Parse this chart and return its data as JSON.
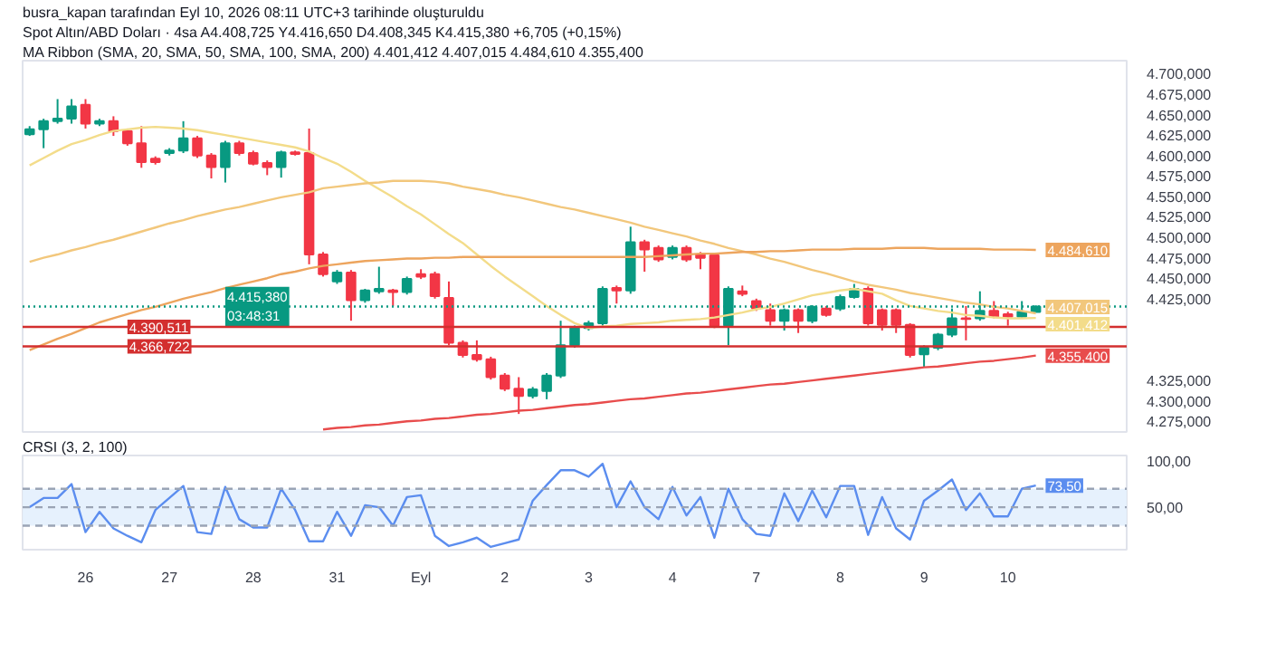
{
  "chart_data": [
    {
      "type": "candlestick",
      "title": "busra_kapan tarafından Eyl 10, 2026 08:11 UTC+3 tarihinde oluşturuldu",
      "subtitle": "Spot Altın/ABD Doları · 4sa   A4.408,725  Y4.416,650  D4.408,345  K4.415,380  +6,705 (+0,15%)",
      "categories": [
        null,
        null,
        null,
        null,
        null,
        null,
        null,
        null,
        null,
        null,
        null,
        null,
        null,
        null,
        null,
        null,
        null,
        null,
        null,
        null,
        null,
        null,
        null,
        null,
        null,
        null,
        null,
        null,
        null,
        null,
        null,
        null,
        null,
        null,
        null,
        null,
        null,
        null,
        null,
        null,
        null,
        null,
        null,
        null,
        null,
        null,
        null,
        null,
        null,
        null,
        null,
        null,
        null,
        null,
        null,
        null,
        null,
        null,
        null,
        null,
        null,
        null,
        null,
        null,
        null,
        null,
        null,
        null,
        null,
        null,
        null,
        null,
        null,
        null,
        null,
        null,
        null,
        null,
        null
      ],
      "ohlc": [
        [
          4626,
          4636,
          4624,
          4632
        ],
        [
          4632,
          4645,
          4609,
          4642
        ],
        [
          4642,
          4669,
          4639,
          4645
        ],
        [
          4645,
          4669,
          4639,
          4660
        ],
        [
          4662,
          4669,
          4633,
          4639
        ],
        [
          4639,
          4645,
          4636,
          4642
        ],
        [
          4642,
          4648,
          4624,
          4630
        ],
        [
          4630,
          4633,
          4612,
          4615
        ],
        [
          4615,
          4636,
          4585,
          4592
        ],
        [
          4596,
          4599,
          4589,
          4592
        ],
        [
          4603,
          4609,
          4600,
          4606
        ],
        [
          4606,
          4642,
          4603,
          4621
        ],
        [
          4621,
          4624,
          4597,
          4600
        ],
        [
          4600,
          4603,
          4572,
          4586
        ],
        [
          4586,
          4618,
          4567,
          4615
        ],
        [
          4615,
          4618,
          4600,
          4603
        ],
        [
          4603,
          4606,
          4588,
          4590
        ],
        [
          4591,
          4594,
          4576,
          4586
        ],
        [
          4586,
          4606,
          4573,
          4604
        ],
        [
          4604,
          4606,
          4600,
          4602
        ],
        [
          4603,
          4633,
          4467,
          4479
        ],
        [
          4479,
          4482,
          4452,
          4455
        ],
        [
          4446,
          4460,
          4443,
          4457
        ],
        [
          4457,
          4460,
          4398,
          4423
        ],
        [
          4423,
          4437,
          4420,
          4435
        ],
        [
          4434,
          4464,
          4431,
          4437
        ],
        [
          4435,
          4437,
          4416,
          4433
        ],
        [
          4433,
          4452,
          4430,
          4449
        ],
        [
          4455,
          4461,
          4449,
          4452
        ],
        [
          4455,
          4458,
          4425,
          4428
        ],
        [
          4426,
          4446,
          4368,
          4371
        ],
        [
          4371,
          4374,
          4353,
          4356
        ],
        [
          4356,
          4374,
          4348,
          4351
        ],
        [
          4351,
          4354,
          4326,
          4329
        ],
        [
          4331,
          4334,
          4312,
          4315
        ],
        [
          4315,
          4329,
          4284,
          4306
        ],
        [
          4306,
          4317,
          4303,
          4314
        ],
        [
          4312,
          4334,
          4302,
          4331
        ],
        [
          4331,
          4398,
          4328,
          4368
        ],
        [
          4368,
          4392,
          4365,
          4389
        ],
        [
          4389,
          4398,
          4386,
          4395
        ],
        [
          4395,
          4440,
          4390,
          4437
        ],
        [
          4438,
          4441,
          4419,
          4435
        ],
        [
          4435,
          4513,
          4431,
          4494
        ],
        [
          4494,
          4497,
          4458,
          4485
        ],
        [
          4487,
          4490,
          4470,
          4473
        ],
        [
          4476,
          4490,
          4473,
          4487
        ],
        [
          4487,
          4490,
          4470,
          4473
        ],
        [
          4479,
          4482,
          4461,
          4475
        ],
        [
          4478,
          4481,
          4389,
          4392
        ],
        [
          4392,
          4440,
          4368,
          4437
        ],
        [
          4434,
          4441,
          4428,
          4431
        ],
        [
          4422,
          4425,
          4410,
          4413
        ],
        [
          4411,
          4419,
          4392,
          4398
        ],
        [
          4398,
          4413,
          4386,
          4411
        ],
        [
          4411,
          4413,
          4383,
          4398
        ],
        [
          4398,
          4417,
          4395,
          4415
        ],
        [
          4413,
          4416,
          4403,
          4405
        ],
        [
          4413,
          4430,
          4410,
          4427
        ],
        [
          4427,
          4443,
          4425,
          4437
        ],
        [
          4437,
          4440,
          4392,
          4395
        ],
        [
          4411,
          4413,
          4386,
          4393
        ],
        [
          4411,
          4413,
          4383,
          4393
        ],
        [
          4393,
          4395,
          4353,
          4356
        ],
        [
          4357,
          4368,
          4341,
          4365
        ],
        [
          4365,
          4383,
          4362,
          4381
        ],
        [
          4381,
          4413,
          4378,
          4401
        ],
        [
          4401,
          4416,
          4374,
          4400
        ],
        [
          4401,
          4434,
          4398,
          4410
        ],
        [
          4410,
          4422,
          4401,
          4403
        ],
        [
          4406,
          4409,
          4392,
          4403
        ],
        [
          4403,
          4422,
          4401,
          4409
        ],
        [
          4408.725,
          4416.65,
          4408.345,
          4415.38
        ],
        null,
        null,
        null,
        null,
        null,
        null
      ],
      "series": [
        {
          "type": "line",
          "color": "#f3dc8a",
          "values": [
            4588,
            4597,
            4606,
            4614,
            4619,
            4625,
            4630,
            4632,
            4634,
            4635,
            4634,
            4633,
            4631,
            4628,
            4625,
            4622,
            4619,
            4616,
            4613,
            4610,
            4605,
            4597,
            4590,
            4580,
            4569,
            4559,
            4549,
            4538,
            4528,
            4516,
            4504,
            4493,
            4479,
            4465,
            4452,
            4440,
            4428,
            4416,
            4405,
            4395,
            4389,
            4391,
            4392,
            4394,
            4395,
            4396,
            4398,
            4399,
            4400,
            4402,
            4405,
            4408,
            4412,
            4415,
            4419,
            4424,
            4429,
            4432,
            4435,
            4437,
            4434,
            4431,
            4423,
            4416,
            4413,
            4410,
            4408,
            4405,
            4404,
            4402,
            4401,
            4401,
            4401.412,
            null,
            null,
            null,
            null,
            null,
            null
          ],
          "value_labels": [
            null,
            null,
            null,
            null,
            null,
            null,
            null,
            null,
            null,
            null,
            null,
            null,
            null,
            null,
            null,
            null,
            null,
            null,
            null,
            null,
            null,
            null,
            null,
            null,
            null,
            null,
            null,
            null,
            null,
            null,
            null,
            null,
            null,
            null,
            null,
            null,
            null,
            null,
            null,
            null,
            null,
            null,
            null,
            null,
            null,
            null,
            null,
            null,
            null,
            null,
            null,
            null,
            null,
            null,
            null,
            null,
            null,
            null,
            null,
            null,
            null,
            null,
            null,
            null,
            null,
            null,
            null,
            null,
            null,
            null,
            null,
            null,
            "4.401,412",
            null,
            null,
            null,
            null,
            null,
            null
          ]
        },
        {
          "type": "line",
          "color": "#f2c77c",
          "values": [
            4470,
            4475,
            4479,
            4484,
            4488,
            4493,
            4497,
            4502,
            4507,
            4512,
            4517,
            4521,
            4526,
            4530,
            4534,
            4537,
            4541,
            4545,
            4549,
            4552,
            4555,
            4560,
            4562,
            4564,
            4566,
            4567,
            4569,
            4569,
            4569,
            4568,
            4566,
            4562,
            4559,
            4556,
            4552,
            4549,
            4545,
            4541,
            4537,
            4534,
            4530,
            4526,
            4522,
            4518,
            4513,
            4509,
            4505,
            4501,
            4496,
            4492,
            4487,
            4483,
            4479,
            4474,
            4470,
            4465,
            4460,
            4456,
            4451,
            4446,
            4442,
            4439,
            4436,
            4432,
            4429,
            4426,
            4423,
            4420,
            4418,
            4415,
            4413,
            4410,
            4407.015,
            null,
            null,
            null,
            null,
            null,
            null
          ],
          "value_labels": [
            null,
            null,
            null,
            null,
            null,
            null,
            null,
            null,
            null,
            null,
            null,
            null,
            null,
            null,
            null,
            null,
            null,
            null,
            null,
            null,
            null,
            null,
            null,
            null,
            null,
            null,
            null,
            null,
            null,
            null,
            null,
            null,
            null,
            null,
            null,
            null,
            null,
            null,
            null,
            null,
            null,
            null,
            null,
            null,
            null,
            null,
            null,
            null,
            null,
            null,
            null,
            null,
            null,
            null,
            null,
            null,
            null,
            null,
            null,
            null,
            null,
            null,
            null,
            null,
            null,
            null,
            null,
            null,
            null,
            null,
            null,
            null,
            "4.407,015",
            null,
            null,
            null,
            null,
            null,
            null
          ]
        },
        {
          "type": "line",
          "color": "#eda55e",
          "values": [
            4362,
            4369,
            4376,
            4382,
            4389,
            4396,
            4401,
            4406,
            4411,
            4415,
            4420,
            4425,
            4429,
            4433,
            4438,
            4442,
            4446,
            4450,
            4455,
            4458,
            4462,
            4465,
            4467,
            4469,
            4471,
            4472,
            4473,
            4474,
            4474,
            4475,
            4475,
            4476,
            4476,
            4476,
            4476,
            4476,
            4476,
            4476,
            4476,
            4476,
            4476,
            4476,
            4476,
            4476,
            4476,
            4477,
            4478,
            4479,
            4480,
            4480,
            4481,
            4482,
            4482,
            4483,
            4483,
            4484,
            4485,
            4485,
            4485,
            4486,
            4486,
            4486,
            4487,
            4487,
            4487,
            4486,
            4486,
            4486,
            4486,
            4485,
            4485,
            4485,
            4484.61,
            null,
            null,
            null,
            null,
            null,
            null
          ],
          "value_labels": [
            null,
            null,
            null,
            null,
            null,
            null,
            null,
            null,
            null,
            null,
            null,
            null,
            null,
            null,
            null,
            null,
            null,
            null,
            null,
            null,
            null,
            null,
            null,
            null,
            null,
            null,
            null,
            null,
            null,
            null,
            null,
            null,
            null,
            null,
            null,
            null,
            null,
            null,
            null,
            null,
            null,
            null,
            null,
            null,
            null,
            null,
            null,
            null,
            null,
            null,
            null,
            null,
            null,
            null,
            null,
            null,
            null,
            null,
            null,
            null,
            null,
            null,
            null,
            null,
            null,
            null,
            null,
            null,
            null,
            null,
            null,
            null,
            "4.484,610",
            null,
            null,
            null,
            null,
            null,
            null
          ]
        },
        {
          "type": "line",
          "color": "#e84c4c",
          "values": [
            null,
            null,
            null,
            null,
            null,
            null,
            null,
            null,
            null,
            null,
            null,
            null,
            null,
            null,
            null,
            null,
            null,
            null,
            null,
            null,
            null,
            4265,
            4267,
            4268,
            4270,
            4271,
            4273,
            4275,
            4276,
            4278,
            4279,
            4281,
            4283,
            4284,
            4286,
            4288,
            4289,
            4291,
            4293,
            4295,
            4296,
            4298,
            4300,
            4302,
            4303,
            4305,
            4307,
            4309,
            4310,
            4312,
            4314,
            4316,
            4318,
            4320,
            4321,
            4323,
            4325,
            4327,
            4329,
            4331,
            4333,
            4335,
            4337,
            4339,
            4341,
            4342,
            4344,
            4346,
            4348,
            4349,
            4351,
            4353,
            4355.4,
            null,
            null,
            null,
            null,
            null,
            null
          ],
          "value_labels": [
            null,
            null,
            null,
            null,
            null,
            null,
            null,
            null,
            null,
            null,
            null,
            null,
            null,
            null,
            null,
            null,
            null,
            null,
            null,
            null,
            null,
            null,
            null,
            null,
            null,
            null,
            null,
            null,
            null,
            null,
            null,
            null,
            null,
            null,
            null,
            null,
            null,
            null,
            null,
            null,
            null,
            null,
            null,
            null,
            null,
            null,
            null,
            null,
            null,
            null,
            null,
            null,
            null,
            null,
            null,
            null,
            null,
            null,
            null,
            null,
            null,
            null,
            null,
            null,
            null,
            null,
            null,
            null,
            null,
            null,
            null,
            null,
            "4.355,400",
            null,
            null,
            null,
            null,
            null,
            null
          ]
        }
      ],
      "ref_lines": [
        {
          "axis": "y",
          "value": 4415.38,
          "label": "4.415,380\n03:48:31",
          "color": "#089981",
          "line_style": "dotted"
        },
        {
          "axis": "y",
          "value": 4390.511,
          "label": "4.390,511",
          "color": "#d32f2f",
          "line_style": "solid"
        },
        {
          "axis": "y",
          "value": 4366.722,
          "label": "4.366,722",
          "color": "#d32f2f",
          "line_style": "solid"
        }
      ],
      "annotations": [
        "MA Ribbon (SMA, 20, SMA, 50, SMA, 100, SMA, 200)  4.401,412  4.407,015  4.484,610  4.355,400"
      ],
      "ylim": [
        4262,
        4716
      ],
      "yticks": [
        {
          "value": 4275,
          "label": "4.275,000"
        },
        {
          "value": 4300,
          "label": "4.300,000"
        },
        {
          "value": 4325,
          "label": "4.325,000"
        },
        {
          "value": 4425,
          "label": "4.425,000"
        },
        {
          "value": 4450,
          "label": "4.450,000"
        },
        {
          "value": 4475,
          "label": "4.475,000"
        },
        {
          "value": 4500,
          "label": "4.500,000"
        },
        {
          "value": 4525,
          "label": "4.525,000"
        },
        {
          "value": 4550,
          "label": "4.550,000"
        },
        {
          "value": 4575,
          "label": "4.575,000"
        },
        {
          "value": 4600,
          "label": "4.600,000"
        },
        {
          "value": 4625,
          "label": "4.625,000"
        },
        {
          "value": 4650,
          "label": "4.650,000"
        },
        {
          "value": 4675,
          "label": "4.675,000"
        },
        {
          "value": 4700,
          "label": "4.700,000"
        }
      ],
      "tick_labels": "y"
    },
    {
      "type": "line",
      "title": "CRSI (3, 2, 100)",
      "categories": [
        null,
        null,
        null,
        null,
        "26",
        null,
        null,
        null,
        null,
        null,
        "27",
        null,
        null,
        null,
        null,
        null,
        "28",
        null,
        null,
        null,
        null,
        null,
        "31",
        null,
        null,
        null,
        null,
        null,
        "Eyl",
        null,
        null,
        null,
        null,
        null,
        "2",
        null,
        null,
        null,
        null,
        null,
        "3",
        null,
        null,
        null,
        null,
        null,
        "4",
        null,
        null,
        null,
        null,
        null,
        "7",
        null,
        null,
        null,
        null,
        null,
        "8",
        null,
        null,
        null,
        null,
        null,
        "9",
        null,
        null,
        null,
        null,
        null,
        "10",
        null,
        null,
        null,
        null,
        null,
        null,
        null,
        null
      ],
      "series": [
        {
          "color": "#5b8def",
          "values": [
            50,
            60,
            60,
            75,
            23,
            45,
            27,
            19,
            12,
            47,
            60,
            73,
            23,
            21,
            72,
            37,
            28,
            28,
            70,
            47,
            13,
            13,
            45,
            19,
            52,
            50,
            30,
            61,
            63,
            19,
            8,
            12,
            17,
            7,
            11,
            15,
            57,
            74,
            90,
            90,
            83,
            97,
            50,
            78,
            50,
            37,
            72,
            41,
            61,
            17,
            70,
            37,
            21,
            19,
            65,
            35,
            68,
            39,
            73,
            73,
            20,
            61,
            27,
            15,
            57,
            68,
            80,
            47,
            65,
            40,
            40,
            70,
            73.5,
            null,
            null,
            null,
            null,
            null,
            null
          ],
          "value_labels": [
            null,
            null,
            null,
            null,
            null,
            null,
            null,
            null,
            null,
            null,
            null,
            null,
            null,
            null,
            null,
            null,
            null,
            null,
            null,
            null,
            null,
            null,
            null,
            null,
            null,
            null,
            null,
            null,
            null,
            null,
            null,
            null,
            null,
            null,
            null,
            null,
            null,
            null,
            null,
            null,
            null,
            null,
            null,
            null,
            null,
            null,
            null,
            null,
            null,
            null,
            null,
            null,
            null,
            null,
            null,
            null,
            null,
            null,
            null,
            null,
            null,
            null,
            null,
            null,
            null,
            null,
            null,
            null,
            null,
            null,
            null,
            null,
            "73,50",
            null,
            null,
            null,
            null,
            null,
            null
          ]
        }
      ],
      "bands": [
        {
          "axis": "y",
          "from": 30,
          "to": 70,
          "color": "#e3effd"
        }
      ],
      "ref_lines": [
        {
          "axis": "y",
          "value": 70,
          "color": "#9aa4b5",
          "line_style": "dashed"
        },
        {
          "axis": "y",
          "value": 50,
          "color": "#9aa4b5",
          "line_style": "dashed"
        },
        {
          "axis": "y",
          "value": 30,
          "color": "#9aa4b5",
          "line_style": "dashed"
        }
      ],
      "ylim": [
        4,
        106
      ],
      "yticks": [
        {
          "value": 100,
          "label": "100,00"
        },
        {
          "value": 50,
          "label": "50,00"
        }
      ]
    }
  ]
}
